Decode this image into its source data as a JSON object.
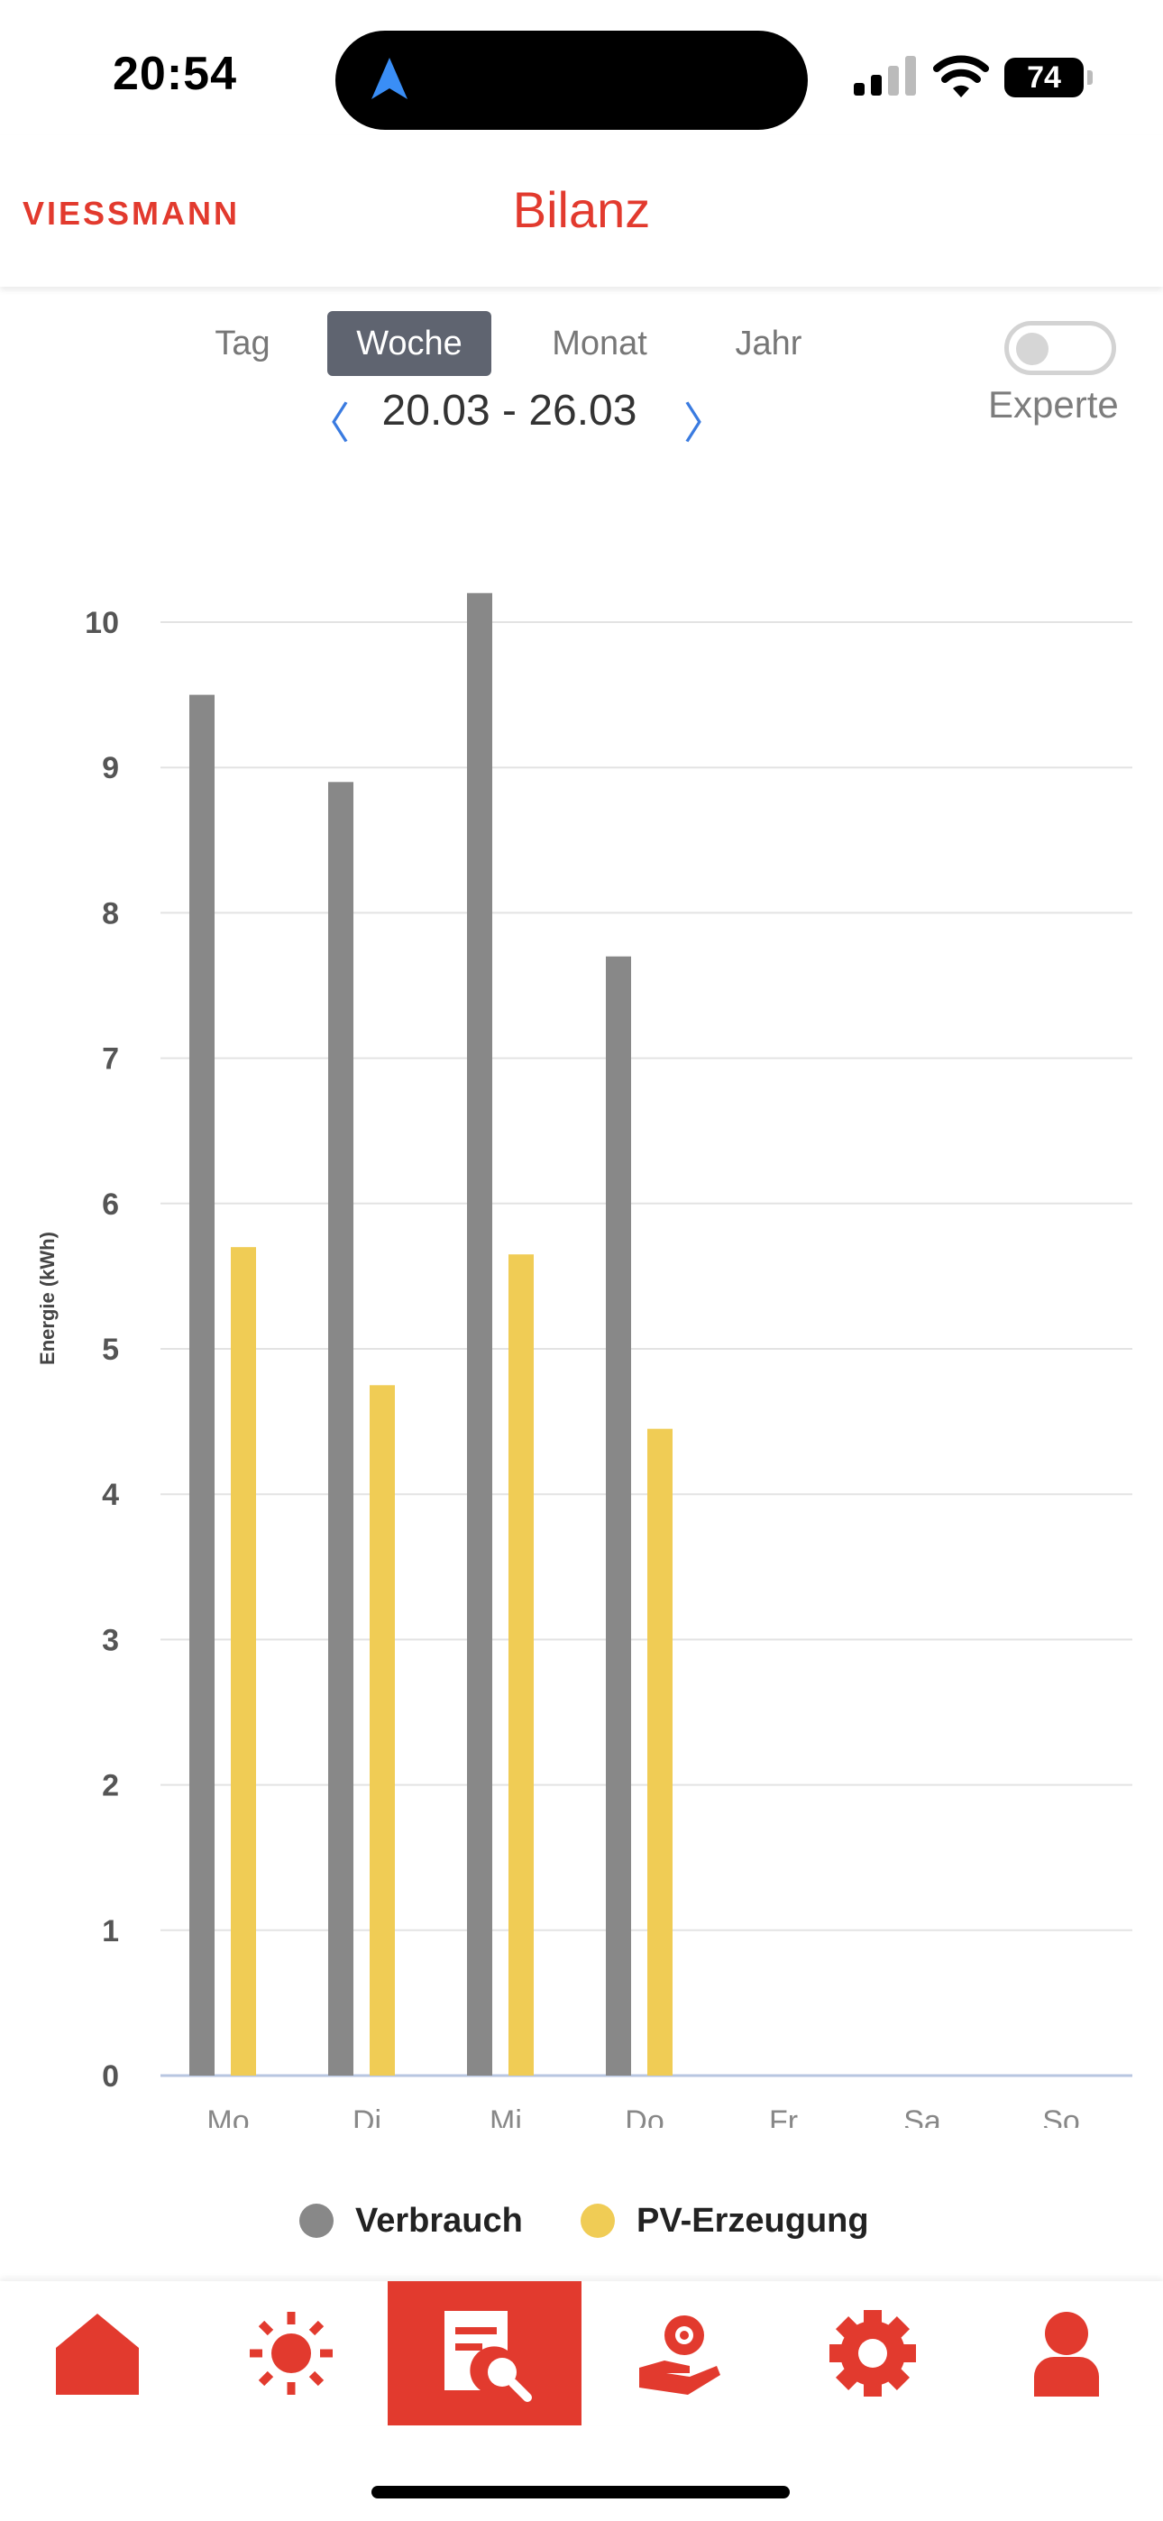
{
  "status_bar": {
    "time": "20:54",
    "battery": "74"
  },
  "header": {
    "logo_text": "VIESSMANN",
    "title": "Bilanz"
  },
  "period_tabs": [
    {
      "label": "Tag",
      "active": false
    },
    {
      "label": "Woche",
      "active": true
    },
    {
      "label": "Monat",
      "active": false
    },
    {
      "label": "Jahr",
      "active": false
    }
  ],
  "date_nav": {
    "prev": "〈",
    "range": "20.03 - 26.03",
    "next": "〉"
  },
  "expert_toggle": {
    "label": "Experte",
    "on": false
  },
  "chart_data": {
    "type": "bar",
    "ylabel": "Energie (kWh)",
    "ylim": [
      0,
      10
    ],
    "yticks": [
      "0",
      "1",
      "2",
      "3",
      "4",
      "5",
      "6",
      "7",
      "8",
      "9",
      "10"
    ],
    "categories": [
      "Mo",
      "Di",
      "Mi",
      "Do",
      "Fr",
      "Sa",
      "So"
    ],
    "grid": true,
    "legend_position": "bottom",
    "series": [
      {
        "name": "Verbrauch",
        "color": "#888888",
        "values": [
          9.5,
          8.9,
          10.2,
          7.7,
          null,
          null,
          null
        ]
      },
      {
        "name": "PV-Erzeugung",
        "color": "#f0cc55",
        "values": [
          5.7,
          4.75,
          5.65,
          4.45,
          null,
          null,
          null
        ]
      }
    ]
  },
  "bottom_nav": [
    {
      "icon": "home-icon",
      "active": false
    },
    {
      "icon": "sun-icon",
      "active": false
    },
    {
      "icon": "report-search-icon",
      "active": true
    },
    {
      "icon": "hand-coin-icon",
      "active": false
    },
    {
      "icon": "gear-icon",
      "active": false
    },
    {
      "icon": "user-icon",
      "active": false
    }
  ],
  "colors": {
    "brand": "#e23a2e",
    "tab_active": "#5f6470",
    "link": "#3a7be0"
  }
}
